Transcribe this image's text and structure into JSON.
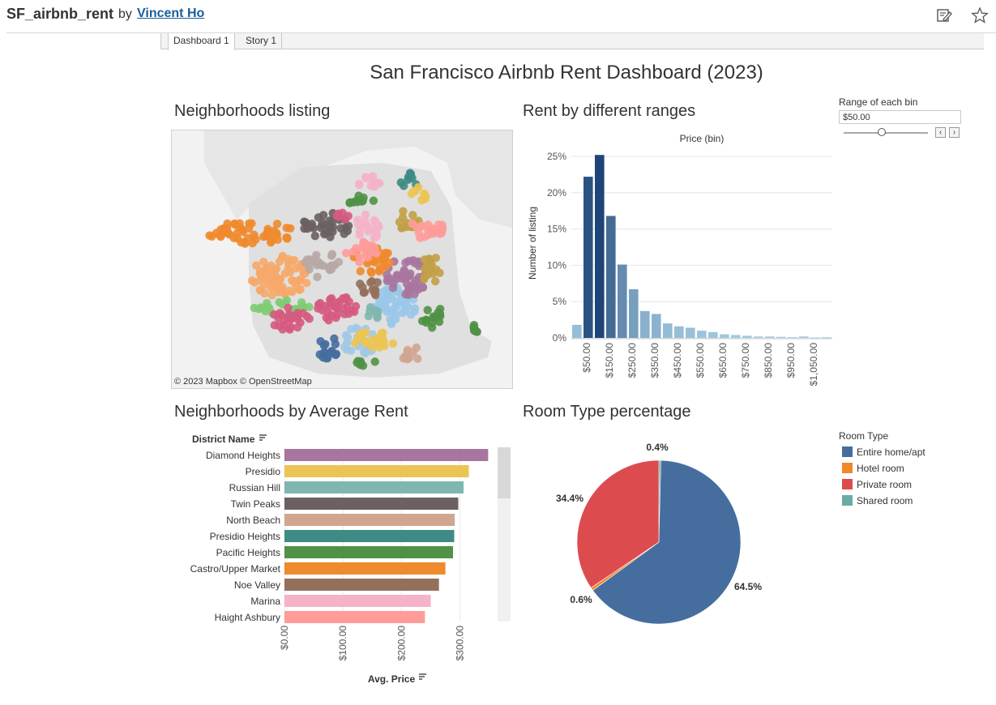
{
  "header": {
    "viz_title": "SF_airbnb_rent",
    "by": "by",
    "author": "Vincent Ho",
    "icons": [
      "edit-icon",
      "star-icon"
    ]
  },
  "tabs": [
    {
      "label": "Dashboard 1",
      "active": true
    },
    {
      "label": "Story 1",
      "active": false
    }
  ],
  "dashboard": {
    "title": "San Francisco Airbnb Rent Dashboard (2023)",
    "sections": {
      "map": "Neighborhoods listing",
      "histogram": "Rent by different ranges",
      "avg_rent": "Neighborhoods by Average Rent",
      "room_type": "Room Type percentage"
    },
    "map_attribution": "© 2023 Mapbox  © OpenStreetMap"
  },
  "parameter": {
    "label": "Range of each bin",
    "value": "$50.00",
    "prev_label": "‹",
    "next_label": "›"
  },
  "chart_data": [
    {
      "type": "bar",
      "title": "Price (bin)",
      "ylabel": "Number of listing",
      "y_ticks": [
        "0%",
        "5%",
        "10%",
        "15%",
        "20%",
        "25%"
      ],
      "ylim": [
        0,
        0.25
      ],
      "x_tick_labels": [
        "$50.00",
        "$150.00",
        "$250.00",
        "$350.00",
        "$450.00",
        "$550.00",
        "$650.00",
        "$750.00",
        "$850.00",
        "$950.00",
        "$1,050.00"
      ],
      "values": [
        0.018,
        0.222,
        0.252,
        0.168,
        0.101,
        0.067,
        0.037,
        0.033,
        0.02,
        0.016,
        0.014,
        0.01,
        0.008,
        0.005,
        0.004,
        0.003,
        0.002,
        0.002,
        0.0015,
        0.001,
        0.002,
        0.0005,
        0.001
      ]
    },
    {
      "type": "bar",
      "orientation": "horizontal",
      "ylabel": "District Name",
      "xlabel": "Avg. Price",
      "x_ticks": [
        "$0.00",
        "$100.00",
        "$200.00",
        "$300.00"
      ],
      "xlim": [
        0,
        360
      ],
      "categories": [
        "Diamond Heights",
        "Presidio",
        "Russian Hill",
        "Twin Peaks",
        "North Beach",
        "Presidio Heights",
        "Pacific Heights",
        "Castro/Upper Market",
        "Noe Valley",
        "Marina",
        "Haight Ashbury"
      ],
      "values": [
        348,
        315,
        306,
        297,
        291,
        290,
        288,
        275,
        264,
        250,
        240
      ],
      "colors": [
        "#a7769e",
        "#ecc453",
        "#7fb7b0",
        "#6b6160",
        "#d0a691",
        "#3d8b84",
        "#509245",
        "#f08a2e",
        "#94705b",
        "#f5b3c8",
        "#ff9c9a"
      ]
    },
    {
      "type": "pie",
      "legend_title": "Room Type",
      "legend_position": "right",
      "labels": [
        "Entire home/apt",
        "Hotel room",
        "Private room",
        "Shared room"
      ],
      "values": [
        64.5,
        0.6,
        34.4,
        0.4
      ],
      "data_labels": [
        "64.5%",
        "0.6%",
        "34.4%",
        "0.4%"
      ],
      "colors": [
        "#456e9f",
        "#f0892b",
        "#dc4c4e",
        "#6aaba6"
      ]
    }
  ]
}
